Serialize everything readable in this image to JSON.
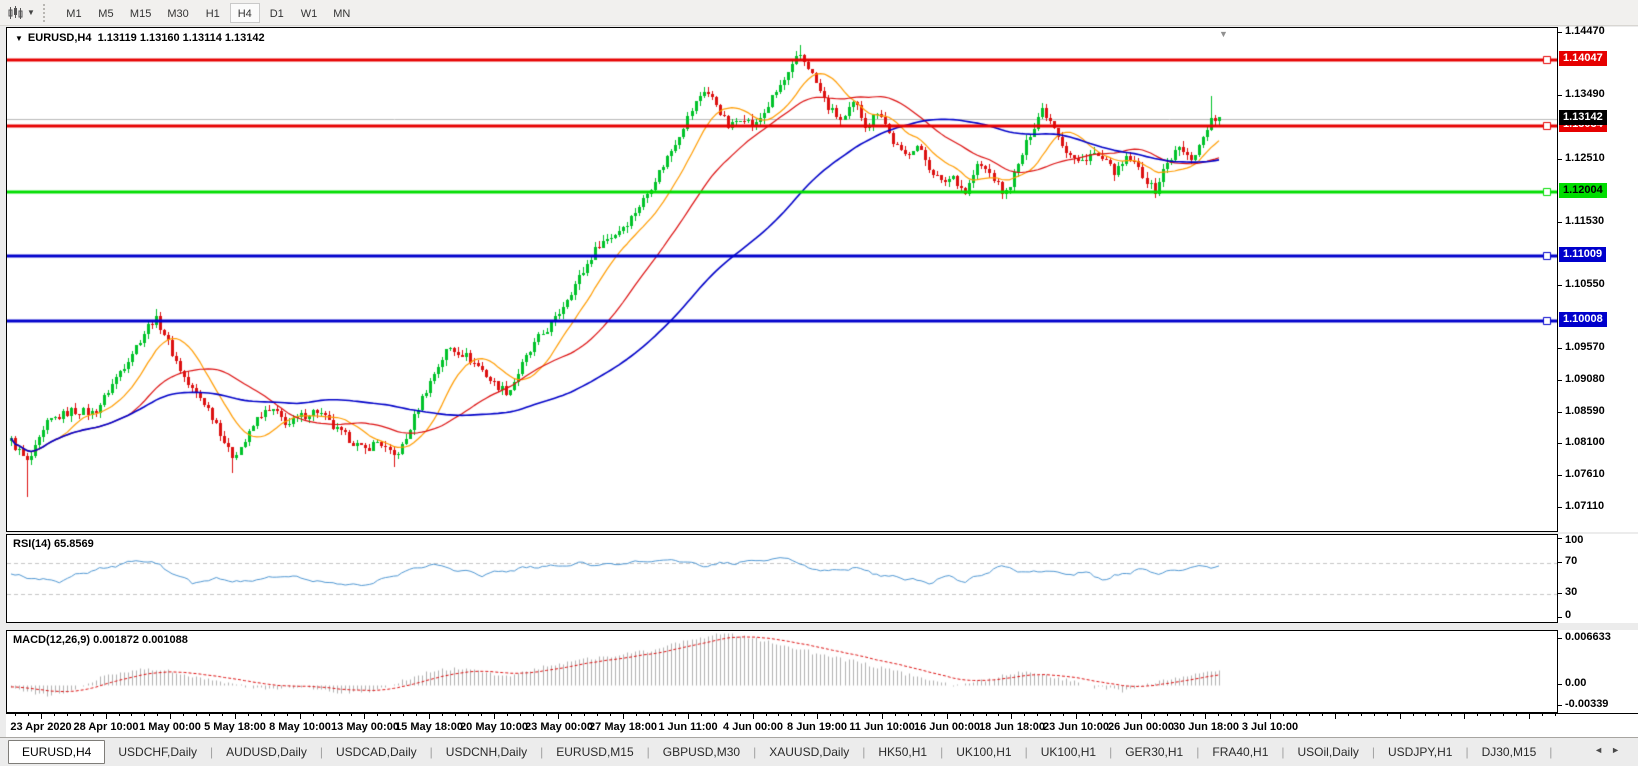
{
  "toolbar": {
    "chart_icon": "chart-icon",
    "timeframes": [
      {
        "label": "M1",
        "active": false
      },
      {
        "label": "M5",
        "active": false
      },
      {
        "label": "M15",
        "active": false
      },
      {
        "label": "M30",
        "active": false
      },
      {
        "label": "H1",
        "active": false
      },
      {
        "label": "H4",
        "active": true
      },
      {
        "label": "D1",
        "active": false
      },
      {
        "label": "W1",
        "active": false
      },
      {
        "label": "MN",
        "active": false
      }
    ]
  },
  "chart": {
    "title_symbol": "EURUSD,H4",
    "title_ohlc": "1.13119 1.13160 1.13114 1.13142"
  },
  "colors": {
    "up": "#00c22a",
    "down": "#dc1010",
    "wick_up": "#00a524",
    "wick_down": "#c00c0c",
    "ma_fast": "#ff9c00",
    "ma_med": "#dc1010",
    "ma_slow": "#0000c8",
    "rsi": "#4e96d2",
    "rsi_level": "#c4c4c4",
    "macd_hist": "#b0b0b0",
    "macd_signal": "#dc1010",
    "current_line": "#b8b8b8",
    "current_tag_bg": "#000000",
    "current_tag_text": "#ffffff"
  },
  "chart_data": [
    {
      "type": "candlestick",
      "symbol": "EURUSD",
      "timeframe": "H4",
      "open": "1.13119",
      "high": "1.13160",
      "low": "1.13114",
      "close": "1.13142",
      "y_ticks": [
        1.1447,
        1.1349,
        1.1251,
        1.1153,
        1.1055,
        1.0957,
        1.0908,
        1.0859,
        1.081,
        1.0761,
        1.0711
      ],
      "y_tick_labels": [
        "1.14470",
        "1.13490",
        "1.12510",
        "1.11530",
        "1.10550",
        "1.09570",
        "1.09080",
        "1.08590",
        "1.08100",
        "1.07610",
        "1.07110"
      ],
      "x_ticks": [
        "23 Apr 2020",
        "28 Apr 10:00",
        "1 May 00:00",
        "5 May 18:00",
        "8 May 10:00",
        "13 May 00:00",
        "15 May 18:00",
        "20 May 10:00",
        "23 May 00:00",
        "27 May 18:00",
        "1 Jun 11:00",
        "4 Jun 00:00",
        "8 Jun 19:00",
        "11 Jun 10:00",
        "16 Jun 00:00",
        "18 Jun 18:00",
        "23 Jun 10:00",
        "26 Jun 00:00",
        "30 Jun 18:00",
        "3 Jul 10:00"
      ],
      "levels": [
        {
          "price": 1.14047,
          "label": "1.14047",
          "color": "#e60000",
          "text": "#ffffff",
          "width": 3
        },
        {
          "price": 1.13034,
          "label": "1.13034",
          "color": "#e60000",
          "text": "#ffffff",
          "width": 3
        },
        {
          "price": 1.12004,
          "label": "1.12004",
          "color": "#00dd00",
          "text": "#000000",
          "width": 3
        },
        {
          "price": 1.11009,
          "label": "1.11009",
          "color": "#0000cc",
          "text": "#ffffff",
          "width": 3
        },
        {
          "price": 1.10008,
          "label": "1.10008",
          "color": "#0000cc",
          "text": "#ffffff",
          "width": 3
        }
      ],
      "current_price": {
        "value": 1.13142,
        "label": "1.13142"
      },
      "price_range": {
        "top": 1.14548,
        "bottom": 1.06754
      },
      "ma_periods": [
        12,
        30,
        72
      ],
      "price_path": [
        [
          0.0,
          1.0815
        ],
        [
          0.014,
          1.078
        ],
        [
          0.031,
          1.0845
        ],
        [
          0.051,
          1.0862
        ],
        [
          0.068,
          1.0858
        ],
        [
          0.076,
          1.088
        ],
        [
          0.089,
          1.092
        ],
        [
          0.101,
          1.0955
        ],
        [
          0.114,
          1.0995
        ],
        [
          0.119,
          1.1005
        ],
        [
          0.126,
          1.0985
        ],
        [
          0.136,
          1.094
        ],
        [
          0.147,
          1.09
        ],
        [
          0.159,
          1.0878
        ],
        [
          0.171,
          1.084
        ],
        [
          0.182,
          1.079
        ],
        [
          0.192,
          1.081
        ],
        [
          0.205,
          1.0855
        ],
        [
          0.217,
          1.0862
        ],
        [
          0.229,
          1.084
        ],
        [
          0.242,
          1.0855
        ],
        [
          0.254,
          1.0862
        ],
        [
          0.267,
          1.0835
        ],
        [
          0.279,
          1.082
        ],
        [
          0.292,
          1.08
        ],
        [
          0.304,
          1.0815
        ],
        [
          0.316,
          1.079
        ],
        [
          0.325,
          1.081
        ],
        [
          0.337,
          1.087
        ],
        [
          0.35,
          1.092
        ],
        [
          0.362,
          1.096
        ],
        [
          0.374,
          1.095
        ],
        [
          0.387,
          1.093
        ],
        [
          0.399,
          1.0905
        ],
        [
          0.412,
          1.089
        ],
        [
          0.424,
          1.0935
        ],
        [
          0.437,
          1.0975
        ],
        [
          0.449,
          1.1
        ],
        [
          0.461,
          1.104
        ],
        [
          0.474,
          1.108
        ],
        [
          0.486,
          1.112
        ],
        [
          0.499,
          1.1135
        ],
        [
          0.511,
          1.1155
        ],
        [
          0.524,
          1.119
        ],
        [
          0.536,
          1.123
        ],
        [
          0.548,
          1.127
        ],
        [
          0.561,
          1.132
        ],
        [
          0.573,
          1.136
        ],
        [
          0.583,
          1.1338
        ],
        [
          0.594,
          1.13
        ],
        [
          0.605,
          1.132
        ],
        [
          0.615,
          1.13
        ],
        [
          0.625,
          1.133
        ],
        [
          0.635,
          1.136
        ],
        [
          0.646,
          1.139
        ],
        [
          0.652,
          1.1415
        ],
        [
          0.66,
          1.1395
        ],
        [
          0.669,
          1.136
        ],
        [
          0.677,
          1.133
        ],
        [
          0.688,
          1.131
        ],
        [
          0.698,
          1.134
        ],
        [
          0.708,
          1.13
        ],
        [
          0.718,
          1.133
        ],
        [
          0.729,
          1.128
        ],
        [
          0.739,
          1.1255
        ],
        [
          0.749,
          1.1275
        ],
        [
          0.76,
          1.124
        ],
        [
          0.77,
          1.1215
        ],
        [
          0.78,
          1.1225
        ],
        [
          0.79,
          1.12
        ],
        [
          0.801,
          1.1245
        ],
        [
          0.812,
          1.1225
        ],
        [
          0.822,
          1.1195
        ],
        [
          0.832,
          1.1235
        ],
        [
          0.843,
          1.129
        ],
        [
          0.853,
          1.133
        ],
        [
          0.863,
          1.1305
        ],
        [
          0.873,
          1.1265
        ],
        [
          0.884,
          1.1245
        ],
        [
          0.895,
          1.1262
        ],
        [
          0.905,
          1.1248
        ],
        [
          0.915,
          1.123
        ],
        [
          0.925,
          1.1255
        ],
        [
          0.936,
          1.123
        ],
        [
          0.946,
          1.12
        ],
        [
          0.956,
          1.1245
        ],
        [
          0.967,
          1.127
        ],
        [
          0.975,
          1.125
        ],
        [
          0.983,
          1.127
        ],
        [
          0.992,
          1.131
        ],
        [
          1.0,
          1.1314
        ]
      ],
      "spikes": [
        {
          "x": 0.014,
          "low": 1.0728
        },
        {
          "x": 0.119,
          "high": 1.1019
        },
        {
          "x": 0.182,
          "low": 1.0766
        },
        {
          "x": 0.316,
          "low": 1.0775
        },
        {
          "x": 0.652,
          "high": 1.1428
        },
        {
          "x": 0.992,
          "high": 1.135
        }
      ]
    },
    {
      "type": "line",
      "label": "RSI(14)",
      "value": "65.8569",
      "label_full": "RSI(14) 65.8569",
      "axis_labels": [
        100,
        70,
        30,
        0
      ],
      "levels": [
        70,
        30
      ],
      "range": [
        0,
        100
      ],
      "path": [
        [
          0,
          55
        ],
        [
          0.02,
          50
        ],
        [
          0.04,
          47
        ],
        [
          0.06,
          57
        ],
        [
          0.08,
          64
        ],
        [
          0.1,
          71
        ],
        [
          0.115,
          73
        ],
        [
          0.13,
          60
        ],
        [
          0.15,
          44
        ],
        [
          0.17,
          50
        ],
        [
          0.19,
          46
        ],
        [
          0.21,
          50
        ],
        [
          0.23,
          53
        ],
        [
          0.26,
          45
        ],
        [
          0.29,
          41
        ],
        [
          0.31,
          50
        ],
        [
          0.33,
          60
        ],
        [
          0.35,
          68
        ],
        [
          0.37,
          60
        ],
        [
          0.39,
          54
        ],
        [
          0.41,
          60
        ],
        [
          0.43,
          64
        ],
        [
          0.45,
          66
        ],
        [
          0.47,
          69
        ],
        [
          0.49,
          67
        ],
        [
          0.51,
          69
        ],
        [
          0.53,
          72
        ],
        [
          0.55,
          74
        ],
        [
          0.57,
          66
        ],
        [
          0.59,
          69
        ],
        [
          0.61,
          71
        ],
        [
          0.63,
          74
        ],
        [
          0.645,
          76
        ],
        [
          0.66,
          62
        ],
        [
          0.68,
          60
        ],
        [
          0.7,
          64
        ],
        [
          0.72,
          54
        ],
        [
          0.74,
          50
        ],
        [
          0.76,
          45
        ],
        [
          0.775,
          53
        ],
        [
          0.79,
          46
        ],
        [
          0.805,
          56
        ],
        [
          0.82,
          66
        ],
        [
          0.84,
          57
        ],
        [
          0.86,
          60
        ],
        [
          0.875,
          55
        ],
        [
          0.89,
          58
        ],
        [
          0.905,
          48
        ],
        [
          0.92,
          56
        ],
        [
          0.935,
          61
        ],
        [
          0.95,
          57
        ],
        [
          0.965,
          60
        ],
        [
          0.98,
          64
        ],
        [
          1,
          66
        ]
      ]
    },
    {
      "type": "macd",
      "label": "MACD(12,26,9)",
      "values": [
        "0.001872",
        "0.001088"
      ],
      "label_full": "MACD(12,26,9) 0.001872 0.001088",
      "axis_labels": [
        "0.006633",
        "0.00",
        "-0.00339"
      ],
      "range": [
        -0.0034,
        0.0067
      ],
      "path": [
        [
          0,
          -0.0004
        ],
        [
          0.03,
          -0.0012
        ],
        [
          0.05,
          -0.0007
        ],
        [
          0.07,
          0.0007
        ],
        [
          0.09,
          0.0016
        ],
        [
          0.11,
          0.0021
        ],
        [
          0.13,
          0.0018
        ],
        [
          0.15,
          0.0011
        ],
        [
          0.18,
          0.0002
        ],
        [
          0.21,
          -0.0005
        ],
        [
          0.24,
          -0.0002
        ],
        [
          0.27,
          -0.0009
        ],
        [
          0.3,
          -0.0007
        ],
        [
          0.33,
          0.0009
        ],
        [
          0.35,
          0.0018
        ],
        [
          0.37,
          0.0021
        ],
        [
          0.39,
          0.0016
        ],
        [
          0.41,
          0.0011
        ],
        [
          0.44,
          0.0022
        ],
        [
          0.47,
          0.0031
        ],
        [
          0.5,
          0.0037
        ],
        [
          0.53,
          0.0044
        ],
        [
          0.56,
          0.0056
        ],
        [
          0.585,
          0.0065
        ],
        [
          0.61,
          0.006
        ],
        [
          0.64,
          0.005
        ],
        [
          0.67,
          0.0038
        ],
        [
          0.7,
          0.0029
        ],
        [
          0.73,
          0.0018
        ],
        [
          0.76,
          0.0007
        ],
        [
          0.785,
          -0.0002
        ],
        [
          0.81,
          0.0008
        ],
        [
          0.835,
          0.0016
        ],
        [
          0.86,
          0.0011
        ],
        [
          0.88,
          0.0004
        ],
        [
          0.9,
          -0.0003
        ],
        [
          0.92,
          -0.0007
        ],
        [
          0.94,
          0.0001
        ],
        [
          0.96,
          0.0008
        ],
        [
          0.98,
          0.0013
        ],
        [
          1,
          0.0019
        ]
      ]
    }
  ],
  "tab_bar": {
    "tabs": [
      {
        "label": "EURUSD,H4",
        "active": true
      },
      {
        "label": "USDCHF,Daily",
        "active": false
      },
      {
        "label": "AUDUSD,Daily",
        "active": false
      },
      {
        "label": "USDCAD,Daily",
        "active": false
      },
      {
        "label": "USDCNH,Daily",
        "active": false
      },
      {
        "label": "EURUSD,M15",
        "active": false
      },
      {
        "label": "GBPUSD,M30",
        "active": false
      },
      {
        "label": "XAUUSD,Daily",
        "active": false
      },
      {
        "label": "HK50,H1",
        "active": false
      },
      {
        "label": "UK100,H1",
        "active": false
      },
      {
        "label": "UK100,H1",
        "active": false
      },
      {
        "label": "GER30,H1",
        "active": false
      },
      {
        "label": "FRA40,H1",
        "active": false
      },
      {
        "label": "USOil,Daily",
        "active": false
      },
      {
        "label": "USDJPY,H1",
        "active": false
      },
      {
        "label": "DJ30,M15",
        "active": false
      }
    ],
    "nav_prev": "◄",
    "nav_next": "►"
  }
}
